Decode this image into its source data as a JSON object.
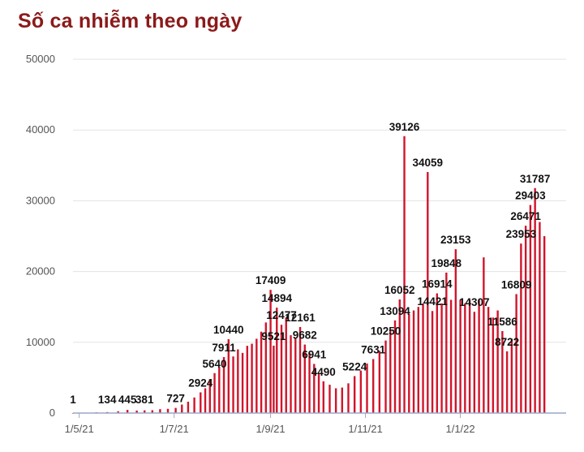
{
  "chart_data": {
    "type": "bar",
    "title": "Số ca nhiễm theo ngày",
    "xlabel": "",
    "ylabel": "",
    "ylim": [
      0,
      50000
    ],
    "yticks": [
      0,
      10000,
      20000,
      30000,
      40000,
      50000
    ],
    "xticks": [
      {
        "label": "1/5/21",
        "date": "2021-05-01"
      },
      {
        "label": "1/7/21",
        "date": "2021-07-01"
      },
      {
        "label": "1/9/21",
        "date": "2021-09-01"
      },
      {
        "label": "1/11/21",
        "date": "2021-11-01"
      },
      {
        "label": "1/1/22",
        "date": "2022-01-01"
      }
    ],
    "x_range": [
      "2021-04-27",
      "2022-03-10"
    ],
    "grid": true,
    "bar_color": "#d0152b",
    "series": [
      {
        "points": [
          [
            "2021-04-27",
            1
          ],
          [
            "2021-05-05",
            50
          ],
          [
            "2021-05-12",
            100
          ],
          [
            "2021-05-19",
            134
          ],
          [
            "2021-05-26",
            250
          ],
          [
            "2021-06-01",
            445
          ],
          [
            "2021-06-07",
            350
          ],
          [
            "2021-06-12",
            381
          ],
          [
            "2021-06-17",
            400
          ],
          [
            "2021-06-22",
            550
          ],
          [
            "2021-06-27",
            600
          ],
          [
            "2021-07-02",
            727
          ],
          [
            "2021-07-06",
            1200
          ],
          [
            "2021-07-10",
            1600
          ],
          [
            "2021-07-14",
            2200
          ],
          [
            "2021-07-18",
            2924
          ],
          [
            "2021-07-21",
            3500
          ],
          [
            "2021-07-24",
            4800
          ],
          [
            "2021-07-27",
            5640
          ],
          [
            "2021-07-30",
            6500
          ],
          [
            "2021-08-02",
            7911
          ],
          [
            "2021-08-05",
            10440
          ],
          [
            "2021-08-08",
            8000
          ],
          [
            "2021-08-11",
            9000
          ],
          [
            "2021-08-14",
            8500
          ],
          [
            "2021-08-17",
            9500
          ],
          [
            "2021-08-20",
            9800
          ],
          [
            "2021-08-23",
            10500
          ],
          [
            "2021-08-26",
            11500
          ],
          [
            "2021-08-29",
            12800
          ],
          [
            "2021-09-01",
            17409
          ],
          [
            "2021-09-03",
            9521
          ],
          [
            "2021-09-05",
            14894
          ],
          [
            "2021-09-08",
            12477
          ],
          [
            "2021-09-11",
            13500
          ],
          [
            "2021-09-14",
            11000
          ],
          [
            "2021-09-17",
            10500
          ],
          [
            "2021-09-20",
            12161
          ],
          [
            "2021-09-23",
            9682
          ],
          [
            "2021-09-26",
            8500
          ],
          [
            "2021-09-29",
            6941
          ],
          [
            "2021-10-02",
            5500
          ],
          [
            "2021-10-05",
            4490
          ],
          [
            "2021-10-09",
            4000
          ],
          [
            "2021-10-13",
            3500
          ],
          [
            "2021-10-17",
            3600
          ],
          [
            "2021-10-21",
            4200
          ],
          [
            "2021-10-25",
            5224
          ],
          [
            "2021-10-29",
            6000
          ],
          [
            "2021-11-02",
            7000
          ],
          [
            "2021-11-06",
            7631
          ],
          [
            "2021-11-10",
            8800
          ],
          [
            "2021-11-14",
            10250
          ],
          [
            "2021-11-17",
            11800
          ],
          [
            "2021-11-20",
            13094
          ],
          [
            "2021-11-23",
            16052
          ],
          [
            "2021-11-26",
            39126
          ],
          [
            "2021-11-29",
            14000
          ],
          [
            "2021-12-02",
            14500
          ],
          [
            "2021-12-05",
            15000
          ],
          [
            "2021-12-08",
            15500
          ],
          [
            "2021-12-11",
            34059
          ],
          [
            "2021-12-14",
            14421
          ],
          [
            "2021-12-17",
            16914
          ],
          [
            "2021-12-20",
            15500
          ],
          [
            "2021-12-23",
            19848
          ],
          [
            "2021-12-26",
            16000
          ],
          [
            "2021-12-29",
            23153
          ],
          [
            "2022-01-01",
            16000
          ],
          [
            "2022-01-04",
            15500
          ],
          [
            "2022-01-07",
            16000
          ],
          [
            "2022-01-10",
            14307
          ],
          [
            "2022-01-13",
            16000
          ],
          [
            "2022-01-16",
            22000
          ],
          [
            "2022-01-19",
            15000
          ],
          [
            "2022-01-22",
            13500
          ],
          [
            "2022-01-25",
            14500
          ],
          [
            "2022-01-28",
            11586
          ],
          [
            "2022-01-31",
            8722
          ],
          [
            "2022-02-03",
            10500
          ],
          [
            "2022-02-06",
            16809
          ],
          [
            "2022-02-09",
            23953
          ],
          [
            "2022-02-12",
            26471
          ],
          [
            "2022-02-15",
            29403
          ],
          [
            "2022-02-18",
            31787
          ],
          [
            "2022-02-21",
            27000
          ],
          [
            "2022-02-24",
            25000
          ]
        ]
      }
    ],
    "data_labels": [
      {
        "text": "1",
        "date": "2021-04-27",
        "value": 1
      },
      {
        "text": "134",
        "date": "2021-05-19",
        "value": 134
      },
      {
        "text": "445",
        "date": "2021-06-01",
        "value": 445
      },
      {
        "text": "381",
        "date": "2021-06-12",
        "value": 381
      },
      {
        "text": "727",
        "date": "2021-07-02",
        "value": 727
      },
      {
        "text": "2924",
        "date": "2021-07-18",
        "value": 2924
      },
      {
        "text": "5640",
        "date": "2021-07-27",
        "value": 5640
      },
      {
        "text": "7911",
        "date": "2021-08-02",
        "value": 7911
      },
      {
        "text": "10440",
        "date": "2021-08-05",
        "value": 10440
      },
      {
        "text": "17409",
        "date": "2021-09-01",
        "value": 17409
      },
      {
        "text": "14894",
        "date": "2021-09-05",
        "value": 14894
      },
      {
        "text": "12477",
        "date": "2021-09-08",
        "value": 12477
      },
      {
        "text": "9521",
        "date": "2021-09-03",
        "value": 9521
      },
      {
        "text": "12161",
        "date": "2021-09-20",
        "value": 12161
      },
      {
        "text": "9682",
        "date": "2021-09-23",
        "value": 9682
      },
      {
        "text": "6941",
        "date": "2021-09-29",
        "value": 6941
      },
      {
        "text": "4490",
        "date": "2021-10-05",
        "value": 4490
      },
      {
        "text": "5224",
        "date": "2021-10-25",
        "value": 5224
      },
      {
        "text": "7631",
        "date": "2021-11-06",
        "value": 7631
      },
      {
        "text": "10250",
        "date": "2021-11-14",
        "value": 10250
      },
      {
        "text": "13094",
        "date": "2021-11-20",
        "value": 13094
      },
      {
        "text": "16052",
        "date": "2021-11-23",
        "value": 16052
      },
      {
        "text": "39126",
        "date": "2021-11-26",
        "value": 39126
      },
      {
        "text": "34059",
        "date": "2021-12-11",
        "value": 34059
      },
      {
        "text": "14421",
        "date": "2021-12-14",
        "value": 14421
      },
      {
        "text": "16914",
        "date": "2021-12-17",
        "value": 16914
      },
      {
        "text": "19848",
        "date": "2021-12-23",
        "value": 19848
      },
      {
        "text": "23153",
        "date": "2021-12-29",
        "value": 23153
      },
      {
        "text": "14307",
        "date": "2022-01-10",
        "value": 14307
      },
      {
        "text": "11586",
        "date": "2022-01-28",
        "value": 11586
      },
      {
        "text": "8722",
        "date": "2022-01-31",
        "value": 8722
      },
      {
        "text": "16809",
        "date": "2022-02-06",
        "value": 16809
      },
      {
        "text": "23953",
        "date": "2022-02-09",
        "value": 23953
      },
      {
        "text": "26471",
        "date": "2022-02-12",
        "value": 26471
      },
      {
        "text": "29403",
        "date": "2022-02-15",
        "value": 29403
      },
      {
        "text": "31787",
        "date": "2022-02-18",
        "value": 31787
      }
    ]
  }
}
